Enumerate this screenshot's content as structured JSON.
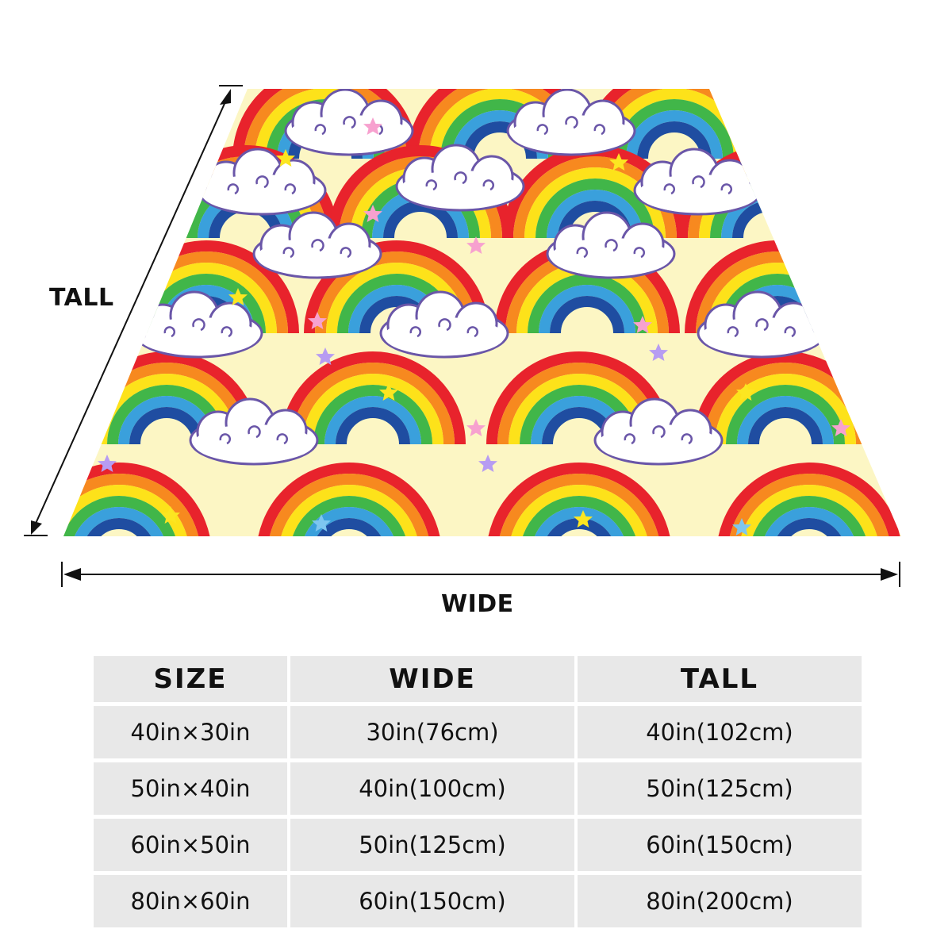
{
  "figure": {
    "tall_label": "TALL",
    "wide_label": "WIDE",
    "colors": {
      "background": "#fcf6c4",
      "rainbow": [
        "#e8232c",
        "#f7891f",
        "#fde21a",
        "#41b649",
        "#3aa0dc",
        "#1f4da1"
      ],
      "cloud_fill": "#ffffff",
      "cloud_outline": "#6a56a8",
      "star_yellow": "#fce621",
      "star_pink": "#f7a1cf",
      "star_purple": "#b79cf2",
      "star_blue": "#7ec6f0"
    }
  },
  "table": {
    "headers": [
      "SIZE",
      "WIDE",
      "TALL"
    ],
    "rows": [
      [
        "40in×30in",
        "30in(76cm)",
        "40in(102cm)"
      ],
      [
        "50in×40in",
        "40in(100cm)",
        "50in(125cm)"
      ],
      [
        "60in×50in",
        "50in(125cm)",
        "60in(150cm)"
      ],
      [
        "80in×60in",
        "60in(150cm)",
        "80in(200cm)"
      ]
    ]
  }
}
